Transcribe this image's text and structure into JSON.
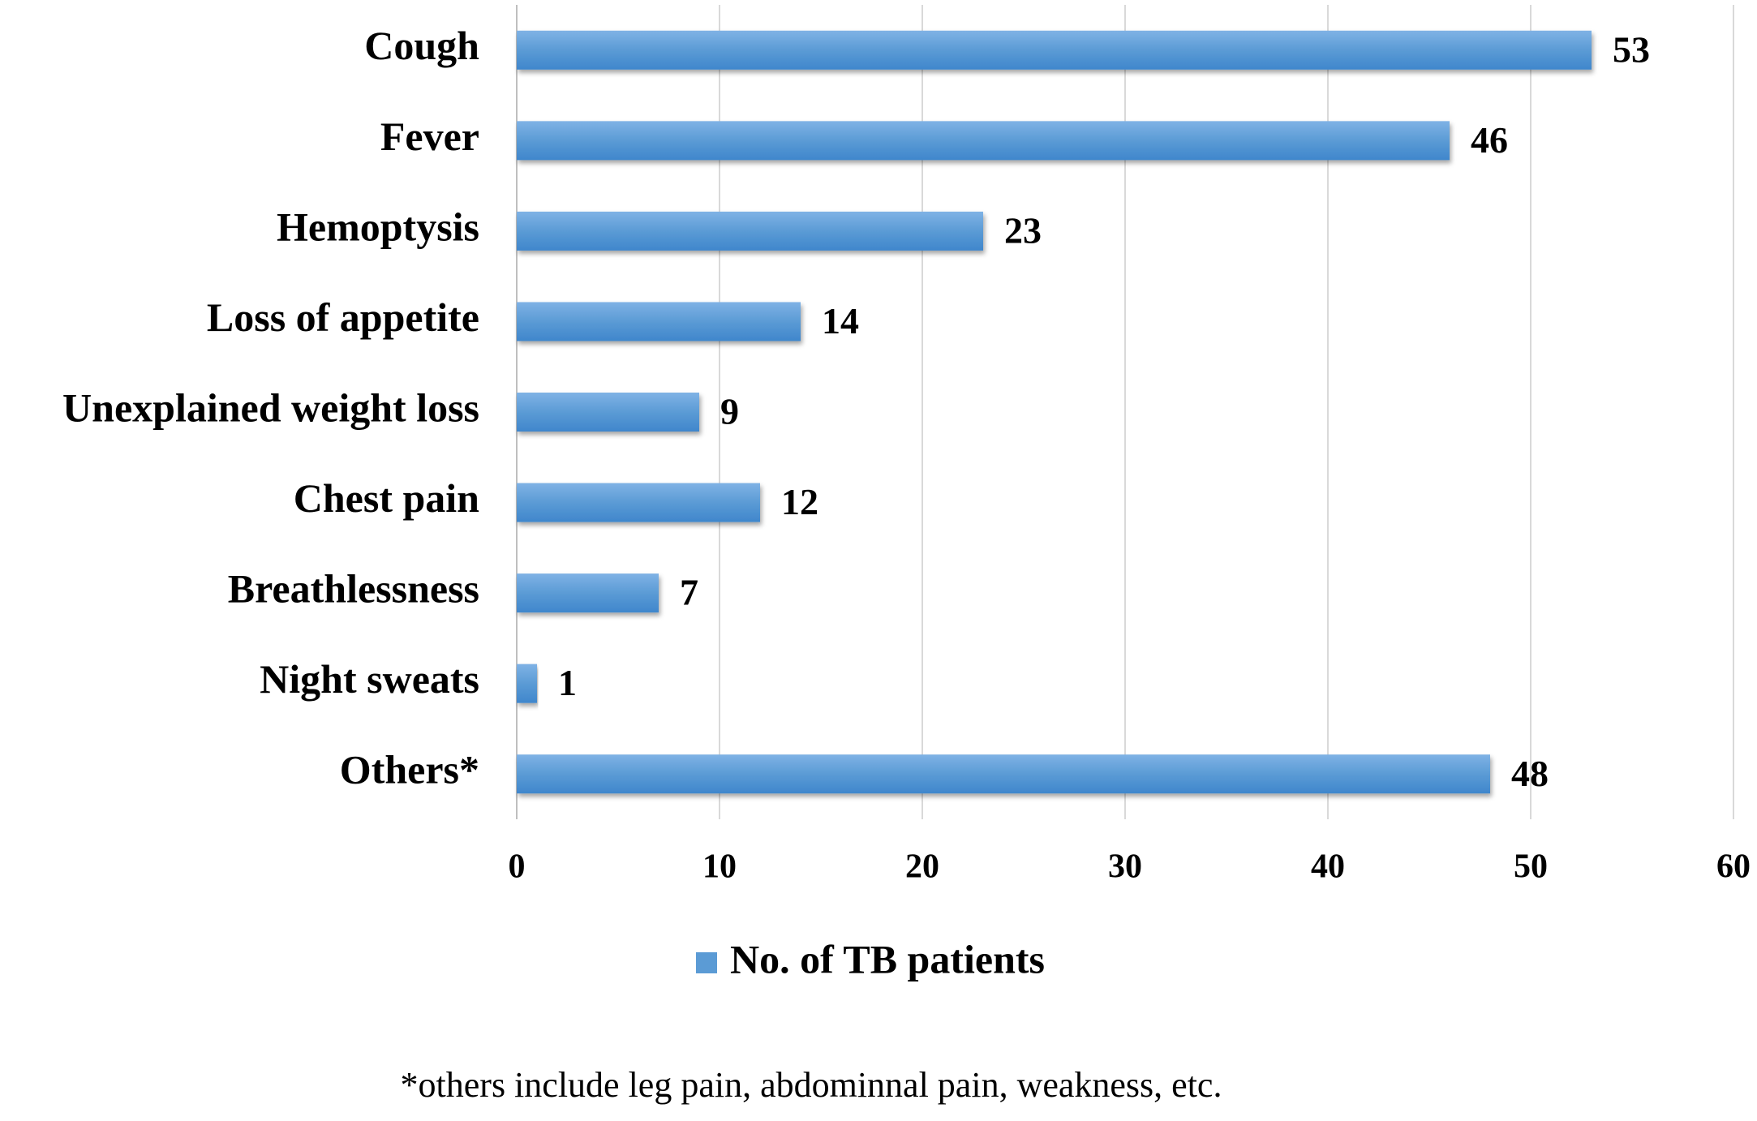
{
  "chart_data": {
    "type": "bar",
    "orientation": "horizontal",
    "categories": [
      "Cough",
      "Fever",
      "Hemoptysis",
      "Loss of appetite",
      "Unexplained weight loss",
      "Chest pain",
      "Breathlessness",
      "Night sweats",
      "Others*"
    ],
    "series": [
      {
        "name": "No. of TB patients",
        "color": "#5b9bd5",
        "values": [
          53,
          46,
          23,
          14,
          9,
          12,
          7,
          1,
          48
        ]
      }
    ],
    "xlim": [
      0,
      60
    ],
    "xticks": [
      0,
      10,
      20,
      30,
      40,
      50,
      60
    ],
    "grid": true,
    "legend": "bottom",
    "footnote": "*others include leg pain, abdominnal pain, weakness, etc."
  }
}
